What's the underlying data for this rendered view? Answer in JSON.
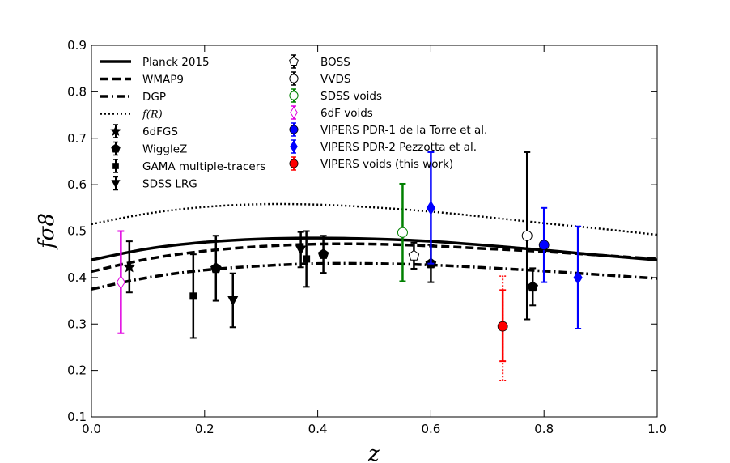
{
  "chart_data": {
    "type": "line",
    "title": "",
    "xlabel": "z",
    "ylabel": "fσ8",
    "xlim": [
      0.0,
      1.0
    ],
    "ylim": [
      0.1,
      0.9
    ],
    "xticks": [
      "0.0",
      "0.2",
      "0.4",
      "0.6",
      "0.8",
      "1.0"
    ],
    "yticks": [
      "0.1",
      "0.2",
      "0.3",
      "0.4",
      "0.5",
      "0.6",
      "0.7",
      "0.8",
      "0.9"
    ],
    "grid": false,
    "legend_placement": "upper-left, two columns",
    "lines": [
      {
        "name": "Planck 2015",
        "style": "solid",
        "x": [
          0.0,
          0.1,
          0.2,
          0.3,
          0.4,
          0.5,
          0.6,
          0.7,
          0.8,
          0.9,
          1.0
        ],
        "y": [
          0.438,
          0.462,
          0.476,
          0.483,
          0.485,
          0.483,
          0.478,
          0.469,
          0.459,
          0.448,
          0.438
        ]
      },
      {
        "name": "WMAP9",
        "style": "dashed",
        "x": [
          0.0,
          0.1,
          0.2,
          0.3,
          0.4,
          0.5,
          0.6,
          0.7,
          0.8,
          0.9,
          1.0
        ],
        "y": [
          0.413,
          0.44,
          0.457,
          0.467,
          0.472,
          0.472,
          0.468,
          0.462,
          0.456,
          0.448,
          0.44
        ]
      },
      {
        "name": "DGP",
        "style": "dashdot",
        "x": [
          0.0,
          0.1,
          0.2,
          0.3,
          0.4,
          0.5,
          0.6,
          0.7,
          0.8,
          0.9,
          1.0
        ],
        "y": [
          0.375,
          0.4,
          0.416,
          0.425,
          0.43,
          0.43,
          0.427,
          0.421,
          0.414,
          0.406,
          0.398
        ]
      },
      {
        "name": "f(R)",
        "label_display": "f(R)",
        "style": "dotted",
        "x": [
          0.0,
          0.1,
          0.2,
          0.3,
          0.4,
          0.5,
          0.6,
          0.7,
          0.8,
          0.9,
          1.0
        ],
        "y": [
          0.515,
          0.538,
          0.552,
          0.558,
          0.557,
          0.551,
          0.542,
          0.53,
          0.517,
          0.505,
          0.492
        ]
      }
    ],
    "points": [
      {
        "name": "6dFGS",
        "marker": "star",
        "color": "#000000",
        "x": 0.067,
        "y": 0.423,
        "err_lo": 0.055,
        "err_hi": 0.055
      },
      {
        "name": "WiggleZ",
        "marker": "pentagon",
        "color": "#000000",
        "x": 0.22,
        "y": 0.42,
        "err_lo": 0.07,
        "err_hi": 0.07
      },
      {
        "name": "WiggleZ",
        "marker": "pentagon",
        "color": "#000000",
        "x": 0.41,
        "y": 0.45,
        "err_lo": 0.04,
        "err_hi": 0.04
      },
      {
        "name": "WiggleZ",
        "marker": "pentagon",
        "color": "#000000",
        "x": 0.6,
        "y": 0.43,
        "err_lo": 0.04,
        "err_hi": 0.04
      },
      {
        "name": "WiggleZ",
        "marker": "pentagon",
        "color": "#000000",
        "x": 0.78,
        "y": 0.38,
        "err_lo": 0.04,
        "err_hi": 0.04
      },
      {
        "name": "GAMA multiple-tracers",
        "marker": "square",
        "color": "#000000",
        "x": 0.18,
        "y": 0.36,
        "err_lo": 0.09,
        "err_hi": 0.09
      },
      {
        "name": "GAMA multiple-tracers",
        "marker": "square",
        "color": "#000000",
        "x": 0.38,
        "y": 0.44,
        "err_lo": 0.06,
        "err_hi": 0.06
      },
      {
        "name": "SDSS LRG",
        "marker": "triangle-down",
        "color": "#000000",
        "x": 0.25,
        "y": 0.351,
        "err_lo": 0.058,
        "err_hi": 0.058
      },
      {
        "name": "SDSS LRG",
        "marker": "triangle-down",
        "color": "#000000",
        "x": 0.37,
        "y": 0.46,
        "err_lo": 0.038,
        "err_hi": 0.038
      },
      {
        "name": "BOSS",
        "marker": "pentagon-open",
        "color": "#000000",
        "x": 0.57,
        "y": 0.447,
        "err_lo": 0.028,
        "err_hi": 0.028
      },
      {
        "name": "VVDS",
        "marker": "circle-open",
        "color": "#000000",
        "x": 0.77,
        "y": 0.49,
        "err_lo": 0.18,
        "err_hi": 0.18
      },
      {
        "name": "SDSS voids",
        "marker": "circle-open",
        "color": "#008000",
        "x": 0.55,
        "y": 0.497,
        "err_lo": 0.105,
        "err_hi": 0.105
      },
      {
        "name": "6dF voids",
        "marker": "diamond-open",
        "color": "#e000e0",
        "x": 0.052,
        "y": 0.39,
        "err_lo": 0.11,
        "err_hi": 0.11
      },
      {
        "name": "VIPERS PDR-1 de la Torre et al.",
        "marker": "circle",
        "color": "#0000ff",
        "x": 0.8,
        "y": 0.47,
        "err_lo": 0.08,
        "err_hi": 0.08
      },
      {
        "name": "VIPERS PDR-2 Pezzotta et al.",
        "marker": "diamond",
        "color": "#0000ff",
        "x": 0.6,
        "y": 0.55,
        "err_lo": 0.12,
        "err_hi": 0.12
      },
      {
        "name": "VIPERS PDR-2 Pezzotta et al.",
        "marker": "diamond",
        "color": "#0000ff",
        "x": 0.86,
        "y": 0.4,
        "err_lo": 0.11,
        "err_hi": 0.11
      },
      {
        "name": "VIPERS voids (this work)",
        "marker": "circle",
        "color": "#ff0000",
        "x": 0.727,
        "y": 0.295,
        "err_lo": 0.075,
        "err_hi": 0.078,
        "syst_lo": 0.117,
        "syst_hi": 0.108
      }
    ],
    "legend_col1": [
      {
        "key": "lines.0",
        "label": "Planck 2015"
      },
      {
        "key": "lines.1",
        "label": "WMAP9"
      },
      {
        "key": "lines.2",
        "label": "DGP"
      },
      {
        "key": "lines.3",
        "label": "f(R)"
      },
      {
        "key": "6dFGS",
        "label": "6dFGS"
      },
      {
        "key": "WiggleZ",
        "label": "WiggleZ"
      },
      {
        "key": "GAMA multiple-tracers",
        "label": "GAMA multiple-tracers"
      },
      {
        "key": "SDSS LRG",
        "label": "SDSS LRG"
      }
    ],
    "legend_col2": [
      {
        "key": "BOSS",
        "label": "BOSS"
      },
      {
        "key": "VVDS",
        "label": "VVDS"
      },
      {
        "key": "SDSS voids",
        "label": "SDSS voids"
      },
      {
        "key": "6dF voids",
        "label": "6dF voids"
      },
      {
        "key": "VIPERS PDR-1 de la Torre et al.",
        "label": "VIPERS PDR-1 de la Torre et al."
      },
      {
        "key": "VIPERS PDR-2 Pezzotta et al.",
        "label": "VIPERS PDR-2 Pezzotta et al."
      },
      {
        "key": "VIPERS voids (this work)",
        "label": "VIPERS voids (this work)"
      }
    ]
  }
}
